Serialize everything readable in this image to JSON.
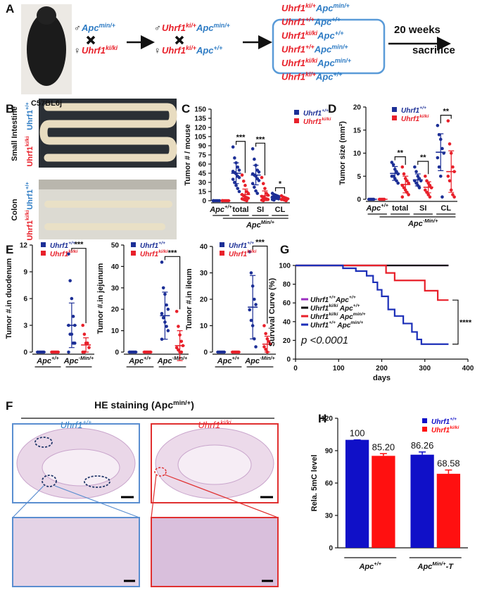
{
  "panel_labels": [
    "A",
    "B",
    "C",
    "D",
    "E",
    "F",
    "G",
    "H"
  ],
  "gene_colors": {
    "Uhrf1": "#e8202a",
    "Apc": "#2f7cc4"
  },
  "scheme": {
    "strain": "C57BL6j",
    "cross1": [
      {
        "sex": "♂",
        "genotype": [
          [
            "Apc",
            "min/+"
          ]
        ]
      },
      {
        "sex": "♀",
        "genotype": [
          [
            "Uhrf1",
            "ki/ki"
          ]
        ]
      }
    ],
    "cross2": [
      {
        "sex": "♂",
        "genotype": [
          [
            "Uhrf1",
            "ki/+"
          ],
          [
            "Apc",
            "min/+"
          ]
        ]
      },
      {
        "sex": "♀",
        "genotype": [
          [
            "Uhrf1",
            "ki/+"
          ],
          [
            "Apc",
            "+/+"
          ]
        ]
      }
    ],
    "offspring": [
      [
        [
          "Uhrf1",
          "ki/+"
        ],
        [
          "Apc",
          "min/+"
        ]
      ],
      [
        [
          "Uhrf1",
          "+/+"
        ],
        [
          "Apc",
          "+/+"
        ]
      ],
      [
        [
          "Uhrf1",
          "ki/ki"
        ],
        [
          "Apc",
          "+/+"
        ]
      ],
      [
        [
          "Uhrf1",
          "+/+"
        ],
        [
          "Apc",
          "min/+"
        ]
      ],
      [
        [
          "Uhrf1",
          "ki/ki"
        ],
        [
          "Apc",
          "min/+"
        ]
      ],
      [
        [
          "Uhrf1",
          "ki/+"
        ],
        [
          "Apc",
          "+/+"
        ]
      ]
    ],
    "timeline": "20 weeks",
    "endpoint": "sacrifice"
  },
  "photos": {
    "small_intestine": "Small Intestine",
    "colon": "Colon",
    "wt": [
      [
        "Uhrf1",
        "+/+"
      ]
    ],
    "ki": [
      [
        "Uhrf1",
        "ki/ki"
      ]
    ],
    "wt_color": "#2f7cc4",
    "ki_color": "#e8202a"
  },
  "he_staining": {
    "title": [
      [
        "HE staining ("
      ],
      [
        "Apc",
        "min/+"
      ],
      [
        ")"
      ]
    ],
    "wt": [
      [
        "Uhrf1",
        "+/+"
      ]
    ],
    "ki": [
      [
        "Uhrf1",
        "ki/ki"
      ]
    ]
  },
  "chart_data": [
    {
      "type": "dot",
      "ylabel": "Tumor # / mouse",
      "ylim": [
        0,
        150
      ],
      "yticks": [
        0,
        15,
        30,
        45,
        60,
        75,
        90,
        105,
        120,
        135,
        150
      ],
      "categories": [
        [
          [
            "Apc",
            "+/+"
          ]
        ],
        "total",
        "SI",
        "CL"
      ],
      "bracket": [
        [
          "Apc",
          "Min/+"
        ]
      ],
      "significance": [
        null,
        "***",
        "***",
        "*"
      ],
      "series": [
        {
          "name": [
            [
              "Uhrf1",
              "+/+"
            ]
          ],
          "color": "#1c2f96",
          "mean": [
            0,
            45,
            42,
            5
          ],
          "sd": [
            0,
            17,
            16,
            3
          ],
          "points": [
            [
              0,
              0,
              0,
              0,
              0,
              0
            ],
            [
              88,
              70,
              62,
              55,
              50,
              48,
              46,
              44,
              40,
              38,
              35,
              30,
              25,
              20,
              15
            ],
            [
              85,
              68,
              58,
              50,
              47,
              44,
              42,
              40,
              36,
              33,
              28,
              22,
              16,
              12
            ],
            [
              12,
              10,
              9,
              8,
              7,
              6,
              5,
              5,
              4,
              3,
              2,
              1
            ]
          ]
        },
        {
          "name": [
            [
              "Uhrf1",
              "ki/ki"
            ]
          ],
          "color": "#e8202a",
          "mean": [
            0,
            10,
            8,
            3
          ],
          "sd": [
            0,
            9,
            8,
            2
          ],
          "points": [
            [
              0,
              0,
              0,
              0,
              0,
              0
            ],
            [
              42,
              32,
              25,
              15,
              12,
              10,
              8,
              6,
              5,
              4,
              3,
              2,
              1,
              0
            ],
            [
              38,
              28,
              20,
              12,
              9,
              7,
              5,
              4,
              3,
              2,
              1,
              0
            ],
            [
              8,
              6,
              5,
              4,
              3,
              2,
              2,
              1,
              0
            ]
          ]
        }
      ]
    },
    {
      "type": "dot",
      "ylabel": "Tumor size (mm²)",
      "ylim": [
        0,
        20
      ],
      "yticks": [
        0,
        5,
        10,
        15,
        20
      ],
      "categories": [
        [
          [
            "Apc",
            "+/+"
          ]
        ],
        "total",
        "SI",
        "CL"
      ],
      "bracket": [
        [
          "Apc",
          "·Min/+"
        ]
      ],
      "significance": [
        null,
        "**",
        "**",
        "**"
      ],
      "series": [
        {
          "name": [
            [
              "Uhrf1",
              "+/+"
            ]
          ],
          "color": "#1c2f96",
          "mean": [
            0,
            5.6,
            4.2,
            10.2
          ],
          "sd": [
            0,
            1.5,
            1.3,
            4
          ],
          "points": [
            [
              0,
              0,
              0,
              0
            ],
            [
              8,
              7.5,
              6.5,
              6,
              5.5,
              5,
              5,
              4.5,
              4,
              3.5
            ],
            [
              7,
              6,
              5,
              4.5,
              4,
              4,
              3.5,
              3,
              2.5
            ],
            [
              16,
              14,
              13,
              11,
              10,
              9,
              7,
              5,
              0.5
            ]
          ]
        },
        {
          "name": [
            [
              "Uhrf1",
              "ki/ki"
            ]
          ],
          "color": "#e8202a",
          "mean": [
            0,
            3.2,
            2.6,
            6
          ],
          "sd": [
            0,
            1.8,
            1.2,
            4.5
          ],
          "points": [
            [
              0,
              0,
              0,
              0
            ],
            [
              7,
              5.5,
              4.5,
              4,
              3.5,
              3,
              2.5,
              2,
              1.5,
              1,
              0.5
            ],
            [
              5,
              4,
              3.5,
              3,
              2.5,
              2,
              1.5,
              1,
              0.5
            ],
            [
              17,
              12,
              10,
              7,
              6,
              5,
              4,
              2,
              1,
              0.5
            ]
          ]
        }
      ]
    },
    {
      "type": "dot",
      "ylabel": "Tumor #.in duodenum",
      "ylim": [
        0,
        12
      ],
      "yticks": [
        0,
        3,
        6,
        9,
        12
      ],
      "categories": [
        [
          [
            "Apc",
            "+/+"
          ]
        ],
        [
          [
            "Apc",
            "·Min/+"
          ]
        ]
      ],
      "significance": [
        null,
        "***"
      ],
      "series": [
        {
          "name": [
            [
              "Uhrf1",
              "+/+"
            ]
          ],
          "color": "#1c2f96",
          "mean": [
            0,
            3
          ],
          "sd": [
            0,
            2.5
          ],
          "points": [
            [
              0,
              0,
              0,
              0,
              0
            ],
            [
              11,
              8,
              6,
              4,
              3,
              3,
              2,
              2,
              1,
              1,
              0
            ]
          ]
        },
        {
          "name": [
            [
              "Uhrf1",
              "ki/ki"
            ]
          ],
          "color": "#e8202a",
          "mean": [
            0,
            0.8
          ],
          "sd": [
            0,
            0.8
          ],
          "points": [
            [
              0,
              0,
              0,
              0,
              0
            ],
            [
              3,
              2,
              1,
              1,
              0.5,
              0,
              0
            ]
          ]
        }
      ]
    },
    {
      "type": "dot",
      "ylabel": "Tumor #.in jejunum",
      "ylim": [
        0,
        50
      ],
      "yticks": [
        0,
        10,
        20,
        30,
        40,
        50
      ],
      "categories": [
        [
          [
            "Apc",
            "+/+"
          ]
        ],
        [
          [
            "Apc",
            "·Min/+"
          ]
        ]
      ],
      "significance": [
        null,
        "***"
      ],
      "series": [
        {
          "name": [
            [
              "Uhrf1",
              "+/+"
            ]
          ],
          "color": "#1c2f96",
          "mean": [
            0,
            17
          ],
          "sd": [
            0,
            11
          ],
          "points": [
            [
              0,
              0,
              0,
              0,
              0
            ],
            [
              42,
              30,
              27,
              22,
              20,
              18,
              16,
              14,
              12,
              10,
              6
            ]
          ]
        },
        {
          "name": [
            [
              "Uhrf1",
              "ki/ki"
            ]
          ],
          "color": "#e8202a",
          "mean": [
            0,
            3
          ],
          "sd": [
            0,
            7
          ],
          "points": [
            [
              0,
              0,
              0,
              0,
              0
            ],
            [
              19,
              12,
              8,
              5,
              3,
              2,
              1,
              0,
              0
            ]
          ]
        }
      ]
    },
    {
      "type": "dot",
      "ylabel": "Tumor #.in ileum",
      "ylim": [
        0,
        40
      ],
      "yticks": [
        0,
        10,
        20,
        30,
        40
      ],
      "categories": [
        [
          [
            "Apc",
            "+/+"
          ]
        ],
        [
          [
            "Apc",
            "·Min/+"
          ]
        ]
      ],
      "significance": [
        null,
        "***"
      ],
      "series": [
        {
          "name": [
            [
              "Uhrf1",
              "+/+"
            ]
          ],
          "color": "#1c2f96",
          "mean": [
            0,
            17
          ],
          "sd": [
            0,
            12
          ],
          "points": [
            [
              0,
              0,
              0,
              0,
              0
            ],
            [
              38,
              30,
              25,
              20,
              18,
              16,
              12,
              10,
              5,
              2
            ]
          ]
        },
        {
          "name": [
            [
              "Uhrf1",
              "ki/ki"
            ]
          ],
          "color": "#e8202a",
          "mean": [
            0,
            3
          ],
          "sd": [
            0,
            3
          ],
          "points": [
            [
              0,
              0,
              0,
              0,
              0
            ],
            [
              10,
              7,
              5,
              4,
              3,
              2,
              1,
              0
            ]
          ]
        }
      ]
    },
    {
      "type": "line",
      "xlabel": "days",
      "ylabel": "Survival Curve (%)",
      "xlim": [
        0,
        400
      ],
      "xticks": [
        0,
        100,
        200,
        300,
        400
      ],
      "ylim": [
        0,
        100
      ],
      "yticks": [
        0,
        20,
        40,
        60,
        80,
        100
      ],
      "annotation": "p <0.0001",
      "significance": "****",
      "series": [
        {
          "name": [
            [
              "Uhrf1",
              "+/+"
            ],
            [
              "Apc",
              "+/+"
            ]
          ],
          "color": "#9b2fc0",
          "x": [
            0,
            355
          ],
          "values": [
            100,
            100
          ]
        },
        {
          "name": [
            [
              "Uhrf1",
              "ki/ki"
            ],
            [
              " Apc",
              "+/+"
            ]
          ],
          "color": "#111111",
          "x": [
            0,
            355
          ],
          "values": [
            100,
            100
          ]
        },
        {
          "name": [
            [
              "Uhrf1",
              "ki/ki"
            ],
            [
              " Apc",
              "min/+"
            ]
          ],
          "color": "#e8202a",
          "x": [
            0,
            210,
            210,
            230,
            230,
            300,
            300,
            330,
            330,
            355
          ],
          "values": [
            100,
            100,
            92,
            92,
            84,
            84,
            73,
            73,
            63,
            63
          ]
        },
        {
          "name": [
            [
              "Uhrf1",
              "+/+"
            ],
            [
              " Apc",
              "min/+"
            ]
          ],
          "color": "#1c2fb8",
          "x": [
            0,
            110,
            110,
            140,
            140,
            165,
            165,
            180,
            180,
            190,
            190,
            200,
            200,
            215,
            215,
            230,
            230,
            250,
            250,
            270,
            270,
            282,
            282,
            292,
            292,
            355
          ],
          "values": [
            100,
            100,
            97,
            97,
            94,
            94,
            89,
            89,
            82,
            82,
            74,
            74,
            67,
            67,
            53,
            53,
            46,
            46,
            38,
            38,
            29,
            29,
            21,
            21,
            16,
            16
          ]
        }
      ]
    },
    {
      "type": "bar",
      "ylabel": "Rela. 5mC level",
      "ylim": [
        0,
        120
      ],
      "yticks": [
        0,
        30,
        60,
        90,
        120
      ],
      "categories": [
        [
          [
            "Apc",
            "+/+"
          ]
        ],
        [
          [
            "Apc",
            "Min/+"
          ],
          [
            "-T"
          ]
        ]
      ],
      "series": [
        {
          "name": [
            [
              "Uhrf1",
              "+/+"
            ]
          ],
          "color": "#1010c8",
          "values": [
            100,
            86.26
          ],
          "errors": [
            0,
            2.5
          ],
          "value_labels": [
            "100",
            "86.26"
          ]
        },
        {
          "name": [
            [
              "Uhrf1",
              "ki/ki"
            ]
          ],
          "color": "#ff1010",
          "values": [
            85.2,
            68.58
          ],
          "errors": [
            2,
            3.5
          ],
          "value_labels": [
            "85.20",
            "68.58"
          ]
        }
      ]
    }
  ]
}
